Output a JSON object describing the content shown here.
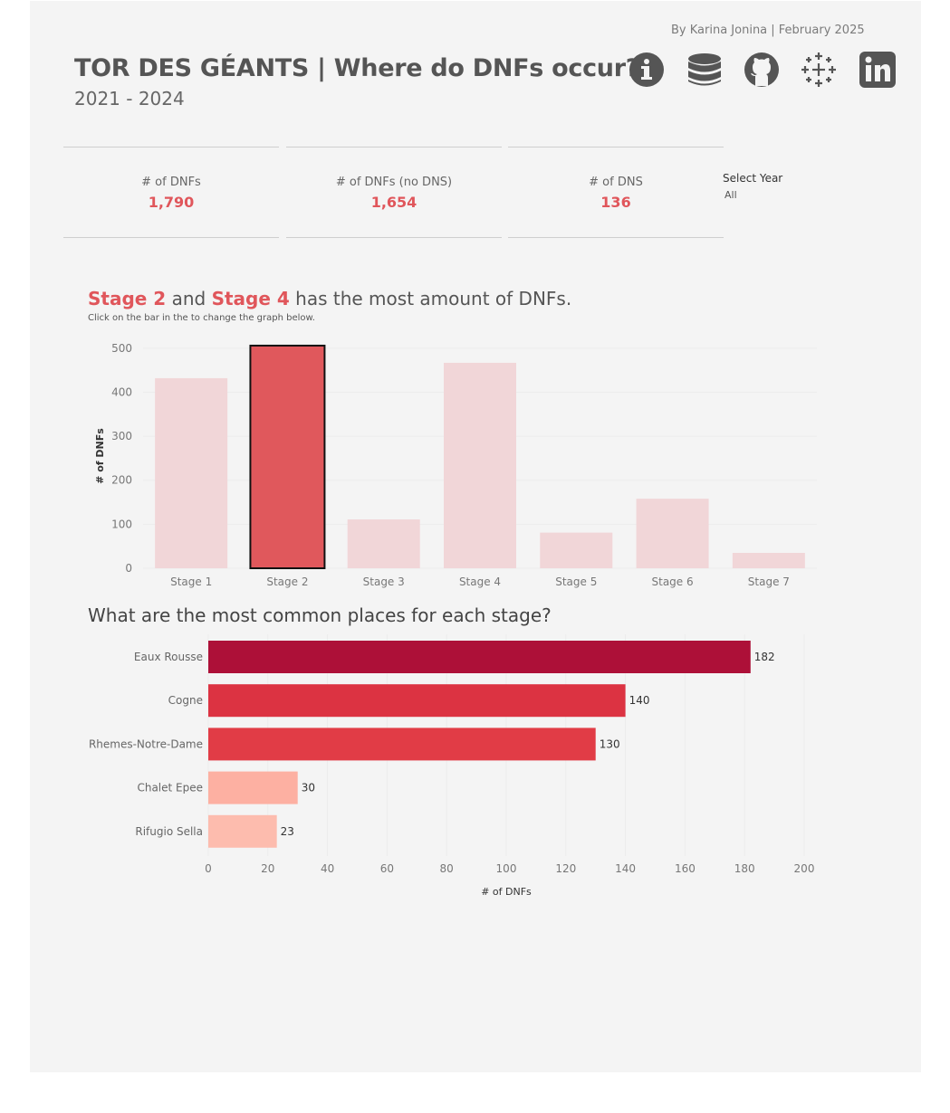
{
  "header": {
    "byline": "By Karina Jonina | February 2025",
    "title": "TOR DES GÉANTS | Where do DNFs occur?",
    "subtitle": "2021 - 2024",
    "icons": [
      "info-icon",
      "database-icon",
      "github-icon",
      "tableau-icon",
      "linkedin-icon"
    ]
  },
  "kpis": [
    {
      "label": "# of DNFs",
      "value": "1,790"
    },
    {
      "label": "# of DNFs (no DNS)",
      "value": "1,654"
    },
    {
      "label": "# of DNS",
      "value": "136"
    }
  ],
  "filter": {
    "title": "Select Year",
    "value": "All"
  },
  "headline": {
    "stage_a": "Stage 2",
    "and": " and ",
    "stage_b": "Stage 4",
    "rest": " has the most amount of DNFs."
  },
  "hint": "Click on the bar in the to change the graph below.",
  "bar_title": "What are the most common places for each stage?",
  "colors": {
    "accent": "#e0565b",
    "muted_bar": "#f1d6d8",
    "highlight_bar": "#e0585c"
  },
  "chart_data": [
    {
      "type": "bar",
      "categories": [
        "Stage 1",
        "Stage 2",
        "Stage 3",
        "Stage 4",
        "Stage 5",
        "Stage 6",
        "Stage 7"
      ],
      "values": [
        432,
        506,
        111,
        467,
        81,
        158,
        35
      ],
      "selected": "Stage 2",
      "ylabel": "# of DNFs",
      "yticks": [
        0,
        100,
        200,
        300,
        400,
        500
      ],
      "ylim": [
        0,
        510
      ]
    },
    {
      "type": "bar",
      "orientation": "horizontal",
      "categories": [
        "Eaux Rousse",
        "Cogne",
        "Rhemes-Notre-Dame",
        "Chalet Epee",
        "Rifugio Sella"
      ],
      "values": [
        182,
        140,
        130,
        30,
        23
      ],
      "colors": [
        "#ad1038",
        "#dc3342",
        "#e13c46",
        "#fdb0a2",
        "#fdbcae"
      ],
      "xlabel": "# of DNFs",
      "xticks": [
        0,
        20,
        40,
        60,
        80,
        100,
        120,
        140,
        160,
        180,
        200
      ],
      "xlim": [
        0,
        200
      ]
    }
  ]
}
